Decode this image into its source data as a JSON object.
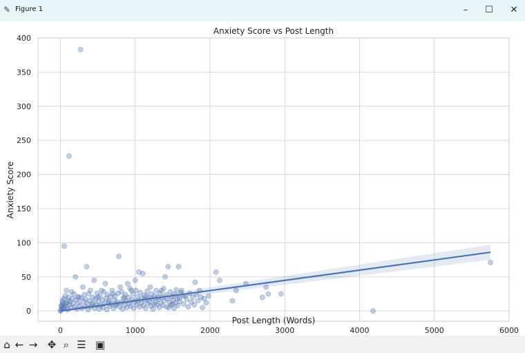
{
  "window": {
    "title": "Figure 1",
    "minimize": "–",
    "maximize": "☐",
    "close": "✕"
  },
  "toolbar": {
    "icons": [
      "home-icon",
      "back-arrow-icon",
      "forward-arrow-icon",
      "pan-icon",
      "zoom-icon",
      "configure-subplots-icon",
      "save-icon"
    ]
  },
  "chart_data": {
    "type": "scatter",
    "title": "Anxiety Score vs Post Length",
    "xlabel": "Post Length (Words)",
    "ylabel": "Anxiety Score",
    "xlim": [
      -300,
      6000
    ],
    "ylim": [
      -15,
      400
    ],
    "xticks": [
      0,
      1000,
      2000,
      3000,
      4000,
      5000,
      6000
    ],
    "yticks": [
      0,
      50,
      100,
      150,
      200,
      250,
      300,
      350,
      400
    ],
    "grid": true,
    "point_color": "#4c72b0",
    "line_color": "#4c72b0",
    "points": [
      [
        270,
        383
      ],
      [
        115,
        227
      ],
      [
        50,
        95
      ],
      [
        780,
        80
      ],
      [
        350,
        65
      ],
      [
        1440,
        65
      ],
      [
        1580,
        65
      ],
      [
        1050,
        57
      ],
      [
        1100,
        55
      ],
      [
        1400,
        50
      ],
      [
        2080,
        57
      ],
      [
        2130,
        45
      ],
      [
        2480,
        40
      ],
      [
        2750,
        35
      ],
      [
        2700,
        20
      ],
      [
        2780,
        25
      ],
      [
        2950,
        25
      ],
      [
        2350,
        30
      ],
      [
        2300,
        15
      ],
      [
        5750,
        71
      ],
      [
        4180,
        0
      ],
      [
        1880,
        20
      ],
      [
        1900,
        5
      ],
      [
        1640,
        22
      ],
      [
        1800,
        42
      ],
      [
        1560,
        18
      ],
      [
        1620,
        30
      ],
      [
        1500,
        10
      ],
      [
        1450,
        5
      ],
      [
        1350,
        30
      ],
      [
        1300,
        20
      ],
      [
        1250,
        10
      ],
      [
        1200,
        35
      ],
      [
        1150,
        22
      ],
      [
        1000,
        45
      ],
      [
        950,
        30
      ],
      [
        900,
        40
      ],
      [
        850,
        20
      ],
      [
        800,
        35
      ],
      [
        750,
        10
      ],
      [
        700,
        25
      ],
      [
        650,
        15
      ],
      [
        600,
        40
      ],
      [
        550,
        30
      ],
      [
        500,
        20
      ],
      [
        450,
        45
      ],
      [
        420,
        10
      ],
      [
        380,
        25
      ],
      [
        300,
        35
      ],
      [
        250,
        20
      ],
      [
        200,
        50
      ],
      [
        150,
        28
      ],
      [
        100,
        15
      ],
      [
        80,
        30
      ],
      [
        60,
        10
      ],
      [
        40,
        5
      ],
      [
        30,
        12
      ],
      [
        20,
        3
      ],
      [
        10,
        8
      ],
      [
        5,
        1
      ],
      [
        0,
        0
      ],
      [
        15,
        6
      ],
      [
        25,
        15
      ],
      [
        35,
        9
      ],
      [
        45,
        18
      ],
      [
        55,
        4
      ],
      [
        65,
        22
      ],
      [
        75,
        7
      ],
      [
        85,
        12
      ],
      [
        95,
        2
      ],
      [
        110,
        20
      ],
      [
        120,
        9
      ],
      [
        130,
        14
      ],
      [
        140,
        5
      ],
      [
        160,
        18
      ],
      [
        170,
        11
      ],
      [
        180,
        25
      ],
      [
        190,
        6
      ],
      [
        210,
        16
      ],
      [
        220,
        3
      ],
      [
        230,
        21
      ],
      [
        240,
        12
      ],
      [
        260,
        8
      ],
      [
        280,
        19
      ],
      [
        290,
        4
      ],
      [
        310,
        14
      ],
      [
        320,
        24
      ],
      [
        330,
        7
      ],
      [
        340,
        17
      ],
      [
        360,
        10
      ],
      [
        370,
        2
      ],
      [
        390,
        15
      ],
      [
        400,
        30
      ],
      [
        410,
        6
      ],
      [
        430,
        20
      ],
      [
        440,
        12
      ],
      [
        460,
        4
      ],
      [
        470,
        18
      ],
      [
        480,
        9
      ],
      [
        490,
        26
      ],
      [
        510,
        14
      ],
      [
        520,
        3
      ],
      [
        530,
        22
      ],
      [
        540,
        8
      ],
      [
        560,
        16
      ],
      [
        570,
        5
      ],
      [
        580,
        28
      ],
      [
        590,
        11
      ],
      [
        610,
        19
      ],
      [
        620,
        2
      ],
      [
        630,
        24
      ],
      [
        640,
        13
      ],
      [
        660,
        7
      ],
      [
        670,
        21
      ],
      [
        680,
        10
      ],
      [
        690,
        30
      ],
      [
        710,
        4
      ],
      [
        720,
        16
      ],
      [
        730,
        22
      ],
      [
        740,
        8
      ],
      [
        760,
        14
      ],
      [
        770,
        26
      ],
      [
        790,
        6
      ],
      [
        810,
        12
      ],
      [
        820,
        28
      ],
      [
        830,
        3
      ],
      [
        840,
        18
      ],
      [
        860,
        9
      ],
      [
        870,
        24
      ],
      [
        880,
        15
      ],
      [
        890,
        5
      ],
      [
        910,
        20
      ],
      [
        920,
        11
      ],
      [
        930,
        33
      ],
      [
        940,
        7
      ],
      [
        960,
        17
      ],
      [
        970,
        25
      ],
      [
        980,
        4
      ],
      [
        990,
        13
      ],
      [
        1010,
        30
      ],
      [
        1020,
        9
      ],
      [
        1030,
        21
      ],
      [
        1040,
        15
      ],
      [
        1060,
        6
      ],
      [
        1070,
        27
      ],
      [
        1080,
        12
      ],
      [
        1090,
        19
      ],
      [
        1110,
        8
      ],
      [
        1120,
        23
      ],
      [
        1130,
        16
      ],
      [
        1140,
        4
      ],
      [
        1160,
        29
      ],
      [
        1170,
        11
      ],
      [
        1180,
        20
      ],
      [
        1190,
        14
      ],
      [
        1210,
        7
      ],
      [
        1220,
        25
      ],
      [
        1230,
        18
      ],
      [
        1240,
        3
      ],
      [
        1260,
        22
      ],
      [
        1270,
        13
      ],
      [
        1280,
        30
      ],
      [
        1290,
        9
      ],
      [
        1310,
        17
      ],
      [
        1320,
        5
      ],
      [
        1330,
        26
      ],
      [
        1340,
        12
      ],
      [
        1360,
        20
      ],
      [
        1370,
        8
      ],
      [
        1380,
        33
      ],
      [
        1390,
        15
      ],
      [
        1410,
        24
      ],
      [
        1420,
        6
      ],
      [
        1430,
        18
      ],
      [
        1460,
        13
      ],
      [
        1470,
        28
      ],
      [
        1480,
        9
      ],
      [
        1490,
        21
      ],
      [
        1510,
        16
      ],
      [
        1520,
        4
      ],
      [
        1530,
        25
      ],
      [
        1540,
        12
      ],
      [
        1550,
        31
      ],
      [
        1570,
        8
      ],
      [
        1590,
        19
      ],
      [
        1600,
        14
      ],
      [
        1610,
        27
      ],
      [
        1650,
        10
      ],
      [
        1670,
        22
      ],
      [
        1690,
        17
      ],
      [
        1710,
        6
      ],
      [
        1730,
        26
      ],
      [
        1750,
        13
      ],
      [
        1770,
        20
      ],
      [
        1790,
        9
      ],
      [
        1820,
        24
      ],
      [
        1840,
        15
      ],
      [
        1860,
        30
      ],
      [
        1920,
        18
      ],
      [
        1950,
        12
      ],
      [
        1980,
        22
      ]
    ],
    "regression": {
      "x": [
        0,
        5750
      ],
      "y": [
        0,
        86
      ],
      "ci_upper": [
        1.5,
        97
      ],
      "ci_lower": [
        -1.5,
        75
      ]
    }
  }
}
